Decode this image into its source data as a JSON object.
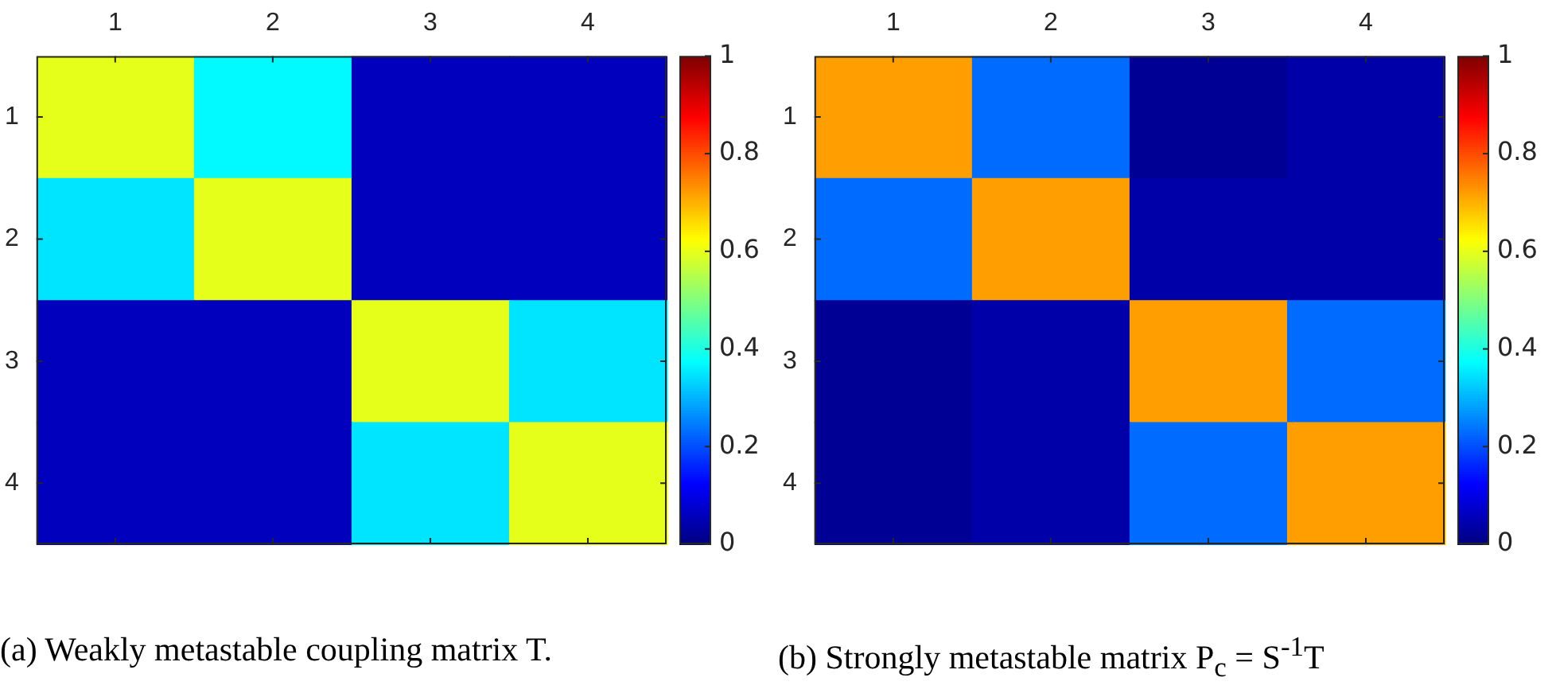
{
  "chart_data": [
    {
      "type": "heatmap",
      "title": "(a) Weakly metastable coupling matrix T.",
      "categories": [
        "1",
        "2",
        "3",
        "4"
      ],
      "y_categories": [
        "1",
        "2",
        "3",
        "4"
      ],
      "cells": [
        [
          0.6,
          0.37,
          0.06,
          0.06
        ],
        [
          0.35,
          0.6,
          0.06,
          0.06
        ],
        [
          0.06,
          0.06,
          0.6,
          0.35
        ],
        [
          0.06,
          0.06,
          0.35,
          0.6
        ]
      ],
      "clim": [
        0,
        1
      ],
      "cticks": [
        0,
        0.2,
        0.4,
        0.6,
        0.8,
        1
      ]
    },
    {
      "type": "heatmap",
      "title": "(b) Strongly metastable matrix P$_{c}$ = S$^{-1}$T",
      "categories": [
        "1",
        "2",
        "3",
        "4"
      ],
      "y_categories": [
        "1",
        "2",
        "3",
        "4"
      ],
      "cells": [
        [
          0.72,
          0.23,
          0.02,
          0.04
        ],
        [
          0.23,
          0.72,
          0.04,
          0.04
        ],
        [
          0.02,
          0.04,
          0.72,
          0.23
        ],
        [
          0.02,
          0.04,
          0.23,
          0.72
        ]
      ],
      "clim": [
        0,
        1
      ],
      "cticks": [
        0,
        0.2,
        0.4,
        0.6,
        0.8,
        1
      ]
    }
  ]
}
